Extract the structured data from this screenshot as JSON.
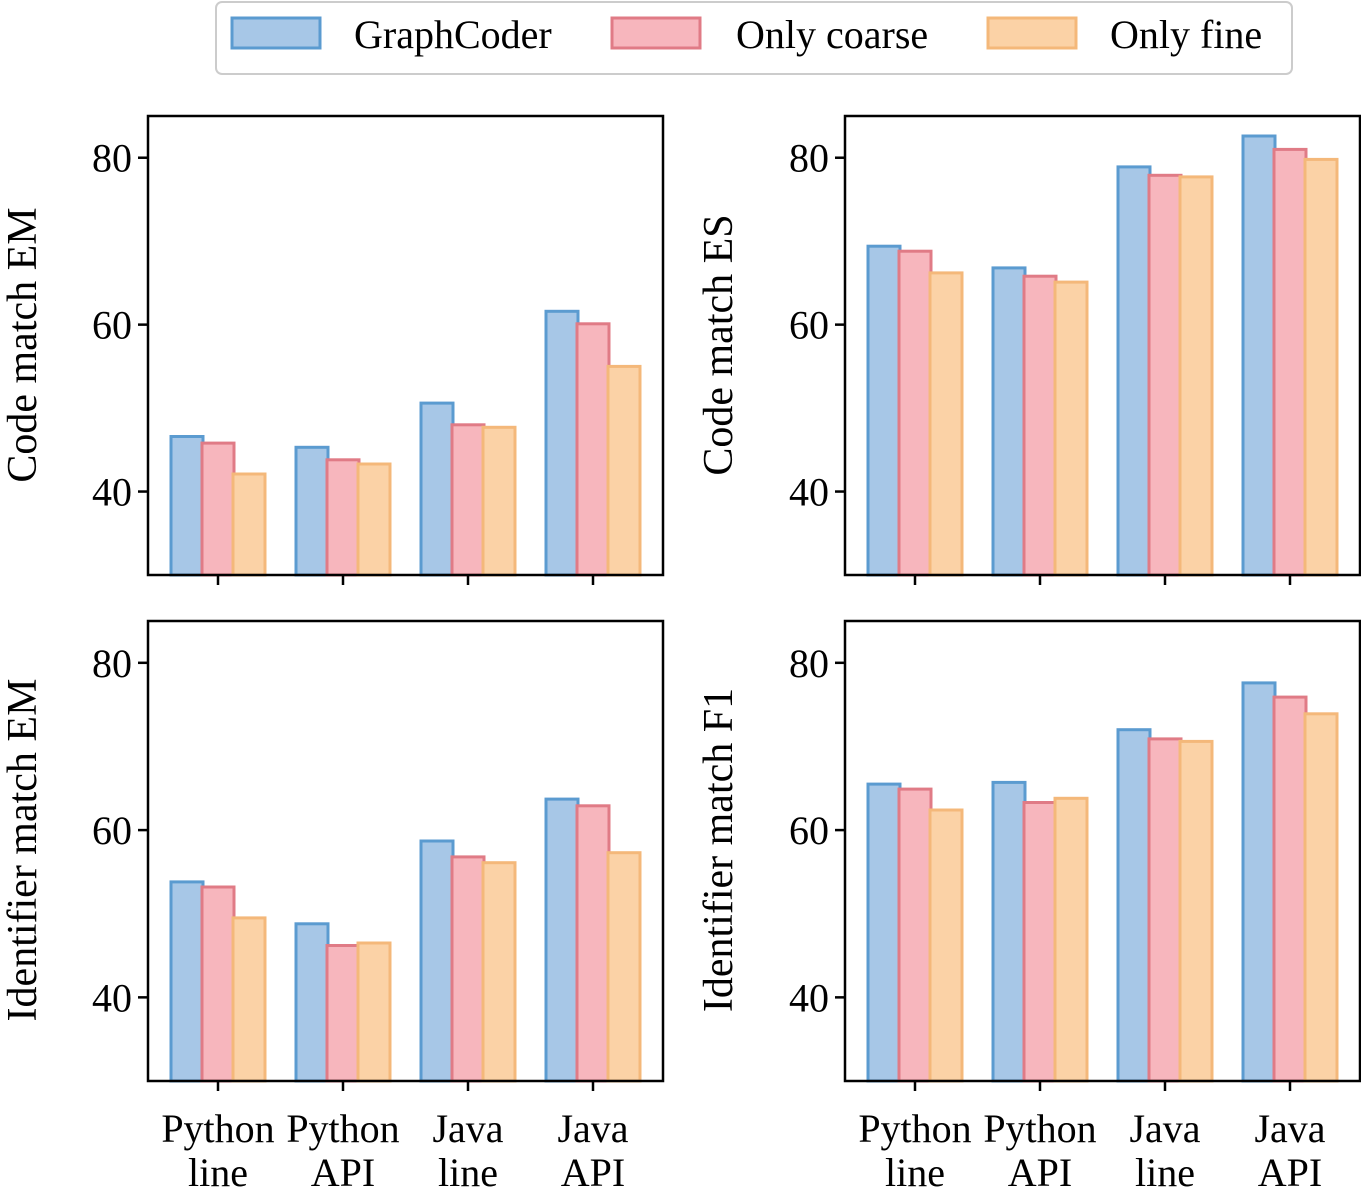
{
  "chart_data": {
    "type": "bar",
    "layout": "2x2 grid of grouped bar charts",
    "categories": [
      [
        "Python",
        "line"
      ],
      [
        "Python",
        "API"
      ],
      [
        "Java",
        "line"
      ],
      [
        "Java",
        "API"
      ]
    ],
    "legend": {
      "placement": "top-center",
      "entries": [
        {
          "name": "GraphCoder",
          "fill": "#a7c7e7",
          "stroke": "#5b9bd0"
        },
        {
          "name": "Only coarse",
          "fill": "#f7b6bd",
          "stroke": "#e07b86"
        },
        {
          "name": "Only fine",
          "fill": "#fbd2a6",
          "stroke": "#f4b87a"
        }
      ]
    },
    "ylim": [
      30,
      85
    ],
    "yticks": [
      40,
      60,
      80
    ],
    "panels": [
      {
        "ylabel": "Code match EM",
        "series": [
          {
            "name": "GraphCoder",
            "values": [
              46.6,
              45.3,
              50.6,
              61.6
            ]
          },
          {
            "name": "Only coarse",
            "values": [
              45.8,
              43.8,
              48.0,
              60.1
            ]
          },
          {
            "name": "Only fine",
            "values": [
              42.1,
              43.3,
              47.7,
              55.0
            ]
          }
        ]
      },
      {
        "ylabel": "Code match ES",
        "series": [
          {
            "name": "GraphCoder",
            "values": [
              69.4,
              66.8,
              78.9,
              82.6
            ]
          },
          {
            "name": "Only coarse",
            "values": [
              68.8,
              65.8,
              77.9,
              81.0
            ]
          },
          {
            "name": "Only fine",
            "values": [
              66.2,
              65.1,
              77.7,
              79.8
            ]
          }
        ]
      },
      {
        "ylabel": "Identifier match EM",
        "series": [
          {
            "name": "GraphCoder",
            "values": [
              53.8,
              48.8,
              58.7,
              63.7
            ]
          },
          {
            "name": "Only coarse",
            "values": [
              53.2,
              46.2,
              56.8,
              62.9
            ]
          },
          {
            "name": "Only fine",
            "values": [
              49.5,
              46.5,
              56.1,
              57.3
            ]
          }
        ]
      },
      {
        "ylabel": "Identifier match F1",
        "series": [
          {
            "name": "GraphCoder",
            "values": [
              65.5,
              65.7,
              72.0,
              77.6
            ]
          },
          {
            "name": "Only coarse",
            "values": [
              64.9,
              63.3,
              70.9,
              75.9
            ]
          },
          {
            "name": "Only fine",
            "values": [
              62.4,
              63.8,
              70.6,
              73.9
            ]
          }
        ]
      }
    ]
  }
}
